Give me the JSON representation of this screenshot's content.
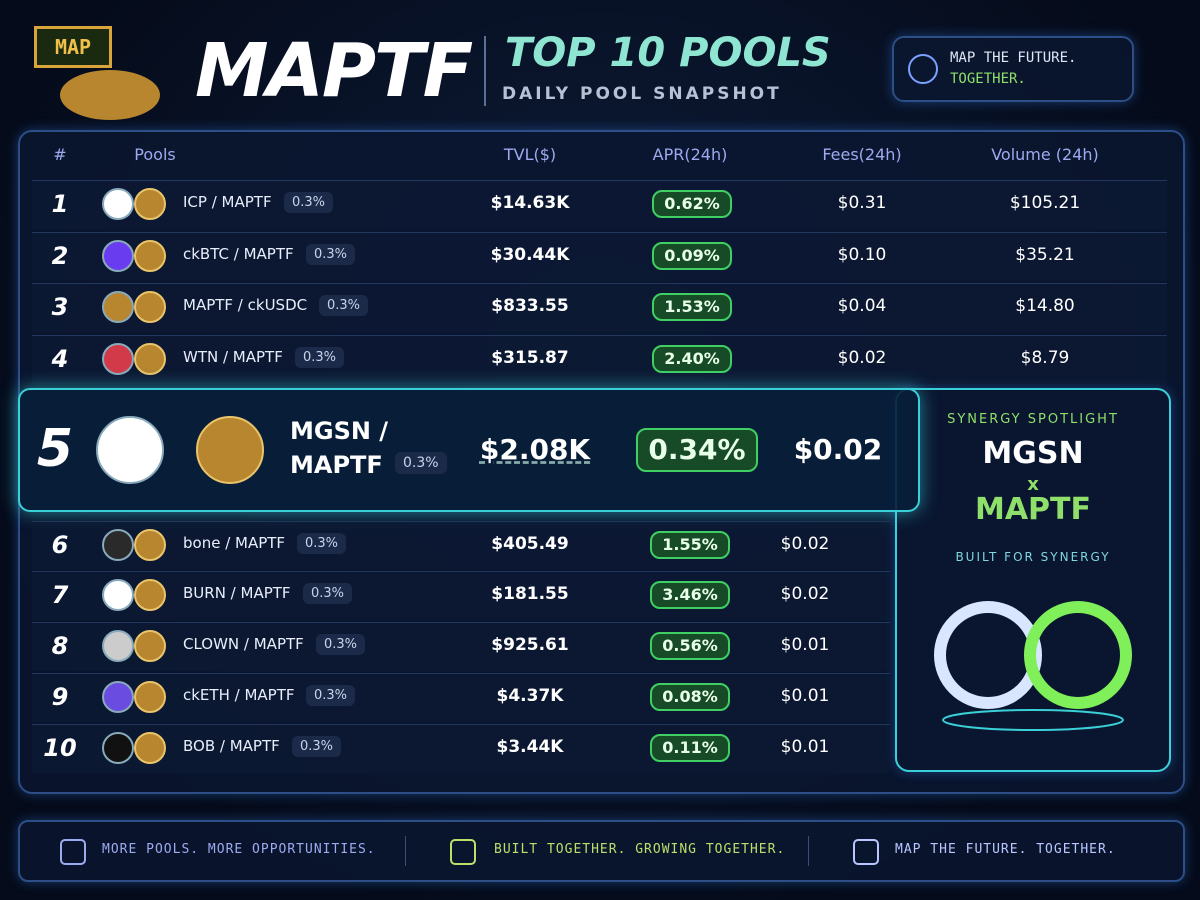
{
  "header": {
    "logo_sign": "MAP",
    "brand": "MAPTF",
    "title": "TOP 10 POOLS",
    "subtitle": "DAILY POOL SNAPSHOT",
    "tagline": [
      "MAP THE FUTURE.",
      "TOGETHER."
    ]
  },
  "table": {
    "columns": [
      "#",
      "Pools",
      "TVL($)",
      "APR(24h)",
      "Fees(24h)",
      "Volume (24h)"
    ],
    "rows": [
      {
        "rank": 1,
        "pair": "ICP / MAPTF",
        "fee_tier": "0.3%",
        "tvl": "$14.63K",
        "apr": "0.62%",
        "fees": "$0.31",
        "volume": "$105.21"
      },
      {
        "rank": 2,
        "pair": "ckBTC / MAPTF",
        "fee_tier": "0.3%",
        "tvl": "$30.44K",
        "apr": "0.09%",
        "fees": "$0.10",
        "volume": "$35.21"
      },
      {
        "rank": 3,
        "pair": "MAPTF / ckUSDC",
        "fee_tier": "0.3%",
        "tvl": "$833.55",
        "apr": "1.53%",
        "fees": "$0.04",
        "volume": "$14.80"
      },
      {
        "rank": 4,
        "pair": "WTN / MAPTF",
        "fee_tier": "0.3%",
        "tvl": "$315.87",
        "apr": "2.40%",
        "fees": "$0.02",
        "volume": "$8.79"
      },
      {
        "rank": 5,
        "pair": "MGSN / MAPTF",
        "fee_tier": "0.3%",
        "tvl": "$2.08K",
        "apr": "0.34%",
        "fees": "$0.02"
      },
      {
        "rank": 6,
        "pair": "bone / MAPTF",
        "fee_tier": "0.3%",
        "tvl": "$405.49",
        "apr": "1.55%",
        "fees": "$0.02"
      },
      {
        "rank": 7,
        "pair": "BURN / MAPTF",
        "fee_tier": "0.3%",
        "tvl": "$181.55",
        "apr": "3.46%",
        "fees": "$0.02"
      },
      {
        "rank": 8,
        "pair": "CLOWN / MAPTF",
        "fee_tier": "0.3%",
        "tvl": "$925.61",
        "apr": "0.56%",
        "fees": "$0.01"
      },
      {
        "rank": 9,
        "pair": "ckETH / MAPTF",
        "fee_tier": "0.3%",
        "tvl": "$4.37K",
        "apr": "0.08%",
        "fees": "$0.01"
      },
      {
        "rank": 10,
        "pair": "BOB / MAPTF",
        "fee_tier": "0.3%",
        "tvl": "$3.44K",
        "apr": "0.11%",
        "fees": "$0.01"
      }
    ]
  },
  "spotlight": {
    "label": "SYNERGY SPOTLIGHT",
    "left": "MGSN",
    "joiner": "x",
    "right": "MAPTF",
    "caption": "BUILT FOR SYNERGY"
  },
  "footer": [
    "MORE POOLS. MORE OPPORTUNITIES.",
    "BUILT TOGETHER. GROWING TOGETHER.",
    "MAP THE FUTURE. TOGETHER."
  ]
}
